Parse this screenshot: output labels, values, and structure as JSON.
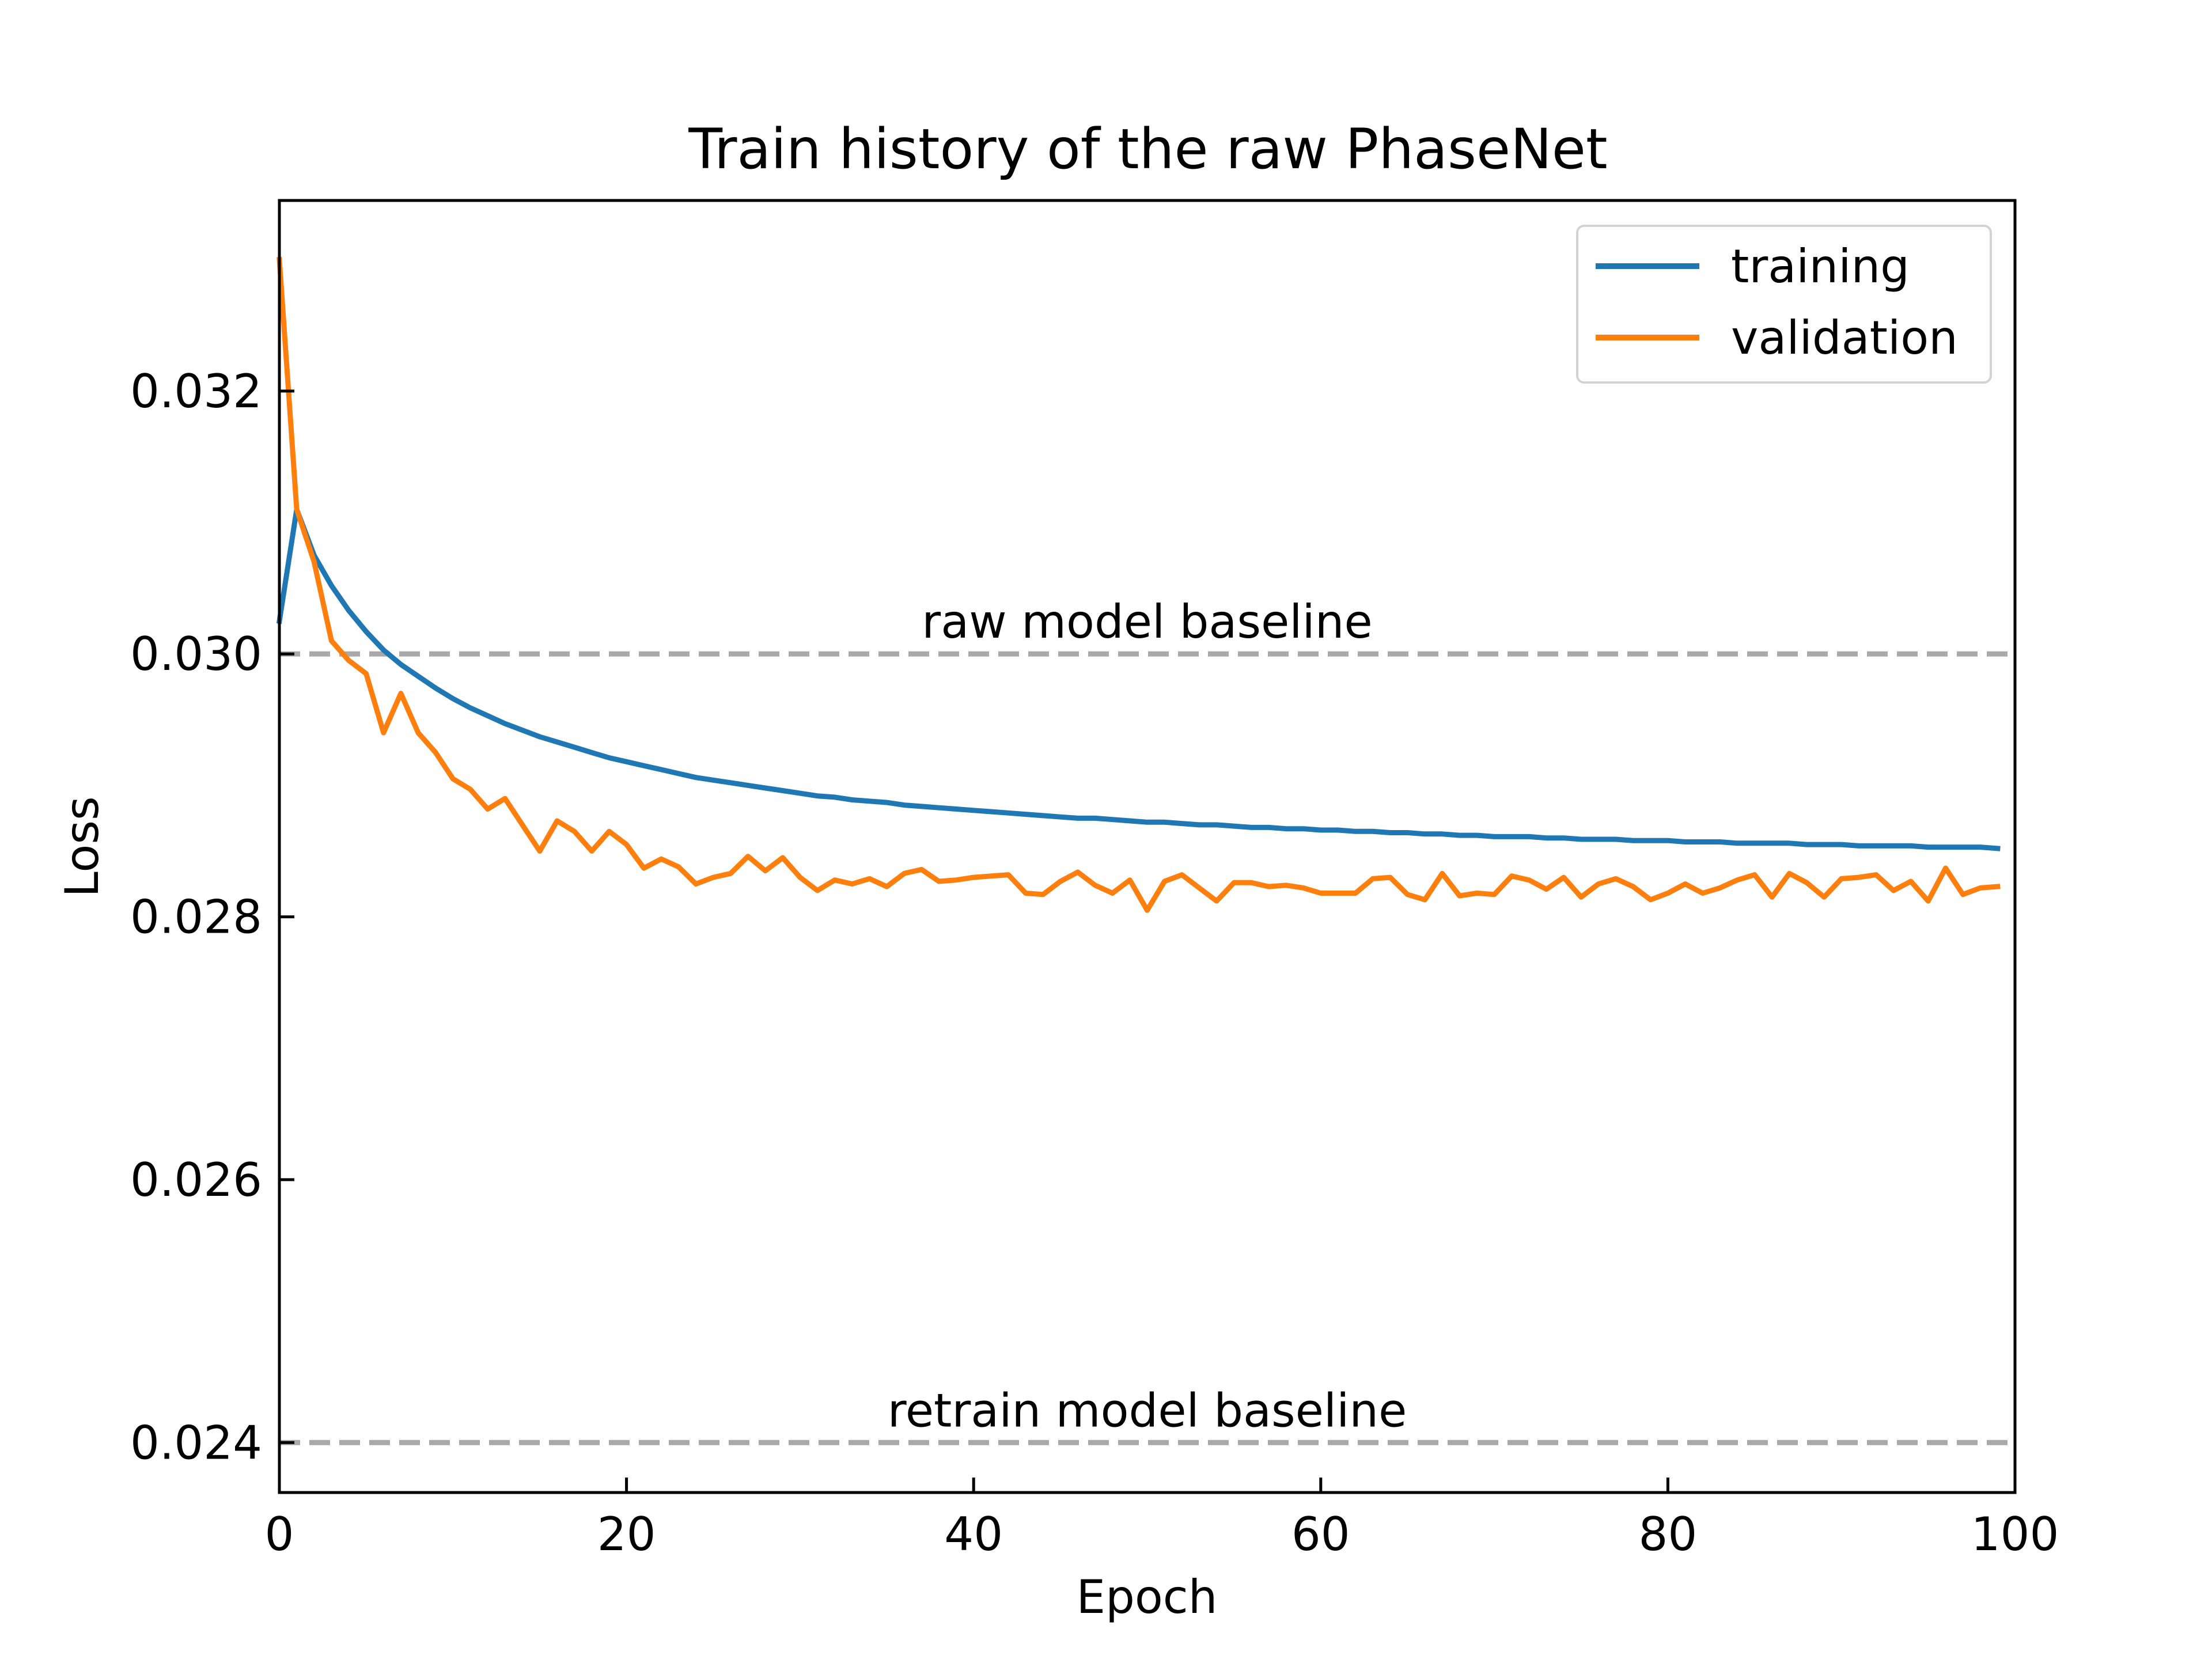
{
  "chart_data": {
    "type": "line",
    "title": "Train history of the raw PhaseNet",
    "xlabel": "Epoch",
    "ylabel": "Loss",
    "xlim": [
      0,
      100
    ],
    "ylim": [
      0.02362,
      0.03345
    ],
    "x_ticks": [
      0,
      20,
      40,
      60,
      80,
      100
    ],
    "x_tick_labels": [
      "0",
      "20",
      "40",
      "60",
      "80",
      "100"
    ],
    "y_ticks": [
      0.024,
      0.026,
      0.028,
      0.03,
      0.032
    ],
    "y_tick_labels": [
      "0.024",
      "0.026",
      "0.028",
      "0.030",
      "0.032"
    ],
    "grid": false,
    "legend_position": "top-right",
    "series": [
      {
        "name": "training",
        "color": "#1f77b4",
        "values": [
          0.03025,
          0.0311,
          0.03075,
          0.03052,
          0.03033,
          0.03017,
          0.03003,
          0.02992,
          0.02983,
          0.02974,
          0.02966,
          0.02959,
          0.02953,
          0.02947,
          0.02942,
          0.02937,
          0.02933,
          0.02929,
          0.02925,
          0.02921,
          0.02918,
          0.02915,
          0.02912,
          0.02909,
          0.02906,
          0.02904,
          0.02902,
          0.029,
          0.02898,
          0.02896,
          0.02894,
          0.02892,
          0.02891,
          0.02889,
          0.02888,
          0.02887,
          0.02885,
          0.02884,
          0.02883,
          0.02882,
          0.02881,
          0.0288,
          0.02879,
          0.02878,
          0.02877,
          0.02876,
          0.02875,
          0.02875,
          0.02874,
          0.02873,
          0.02872,
          0.02872,
          0.02871,
          0.0287,
          0.0287,
          0.02869,
          0.02868,
          0.02868,
          0.02867,
          0.02867,
          0.02866,
          0.02866,
          0.02865,
          0.02865,
          0.02864,
          0.02864,
          0.02863,
          0.02863,
          0.02862,
          0.02862,
          0.02861,
          0.02861,
          0.02861,
          0.0286,
          0.0286,
          0.02859,
          0.02859,
          0.02859,
          0.02858,
          0.02858,
          0.02858,
          0.02857,
          0.02857,
          0.02857,
          0.02856,
          0.02856,
          0.02856,
          0.02856,
          0.02855,
          0.02855,
          0.02855,
          0.02854,
          0.02854,
          0.02854,
          0.02854,
          0.02853,
          0.02853,
          0.02853,
          0.02853,
          0.02852
        ]
      },
      {
        "name": "validation",
        "color": "#ff7f0e",
        "values": [
          0.033,
          0.0311,
          0.0307,
          0.0301,
          0.02995,
          0.02985,
          0.0294,
          0.0297,
          0.0294,
          0.02925,
          0.02905,
          0.02897,
          0.02882,
          0.0289,
          0.0287,
          0.0285,
          0.02873,
          0.02865,
          0.0285,
          0.02865,
          0.02855,
          0.02837,
          0.02844,
          0.02838,
          0.02825,
          0.0283,
          0.02833,
          0.02846,
          0.02835,
          0.02845,
          0.0283,
          0.0282,
          0.02828,
          0.02825,
          0.02829,
          0.02823,
          0.02833,
          0.02836,
          0.02827,
          0.02828,
          0.0283,
          0.02831,
          0.02832,
          0.02818,
          0.02817,
          0.02827,
          0.02834,
          0.02824,
          0.02818,
          0.02828,
          0.02805,
          0.02827,
          0.02832,
          0.02822,
          0.02812,
          0.02826,
          0.02826,
          0.02823,
          0.02824,
          0.02822,
          0.02818,
          0.02818,
          0.02818,
          0.02829,
          0.0283,
          0.02817,
          0.02813,
          0.02833,
          0.02816,
          0.02818,
          0.02817,
          0.02831,
          0.02828,
          0.02821,
          0.0283,
          0.02815,
          0.02825,
          0.02829,
          0.02823,
          0.02813,
          0.02818,
          0.02825,
          0.02818,
          0.02822,
          0.02828,
          0.02832,
          0.02815,
          0.02833,
          0.02826,
          0.02815,
          0.02829,
          0.0283,
          0.02832,
          0.0282,
          0.02827,
          0.02812,
          0.02837,
          0.02817,
          0.02822,
          0.02823
        ]
      }
    ],
    "reference_lines": [
      {
        "y": 0.03,
        "label": "raw model baseline",
        "color": "#a9a9a9"
      },
      {
        "y": 0.024,
        "label": "retrain model baseline",
        "color": "#a9a9a9"
      }
    ]
  }
}
